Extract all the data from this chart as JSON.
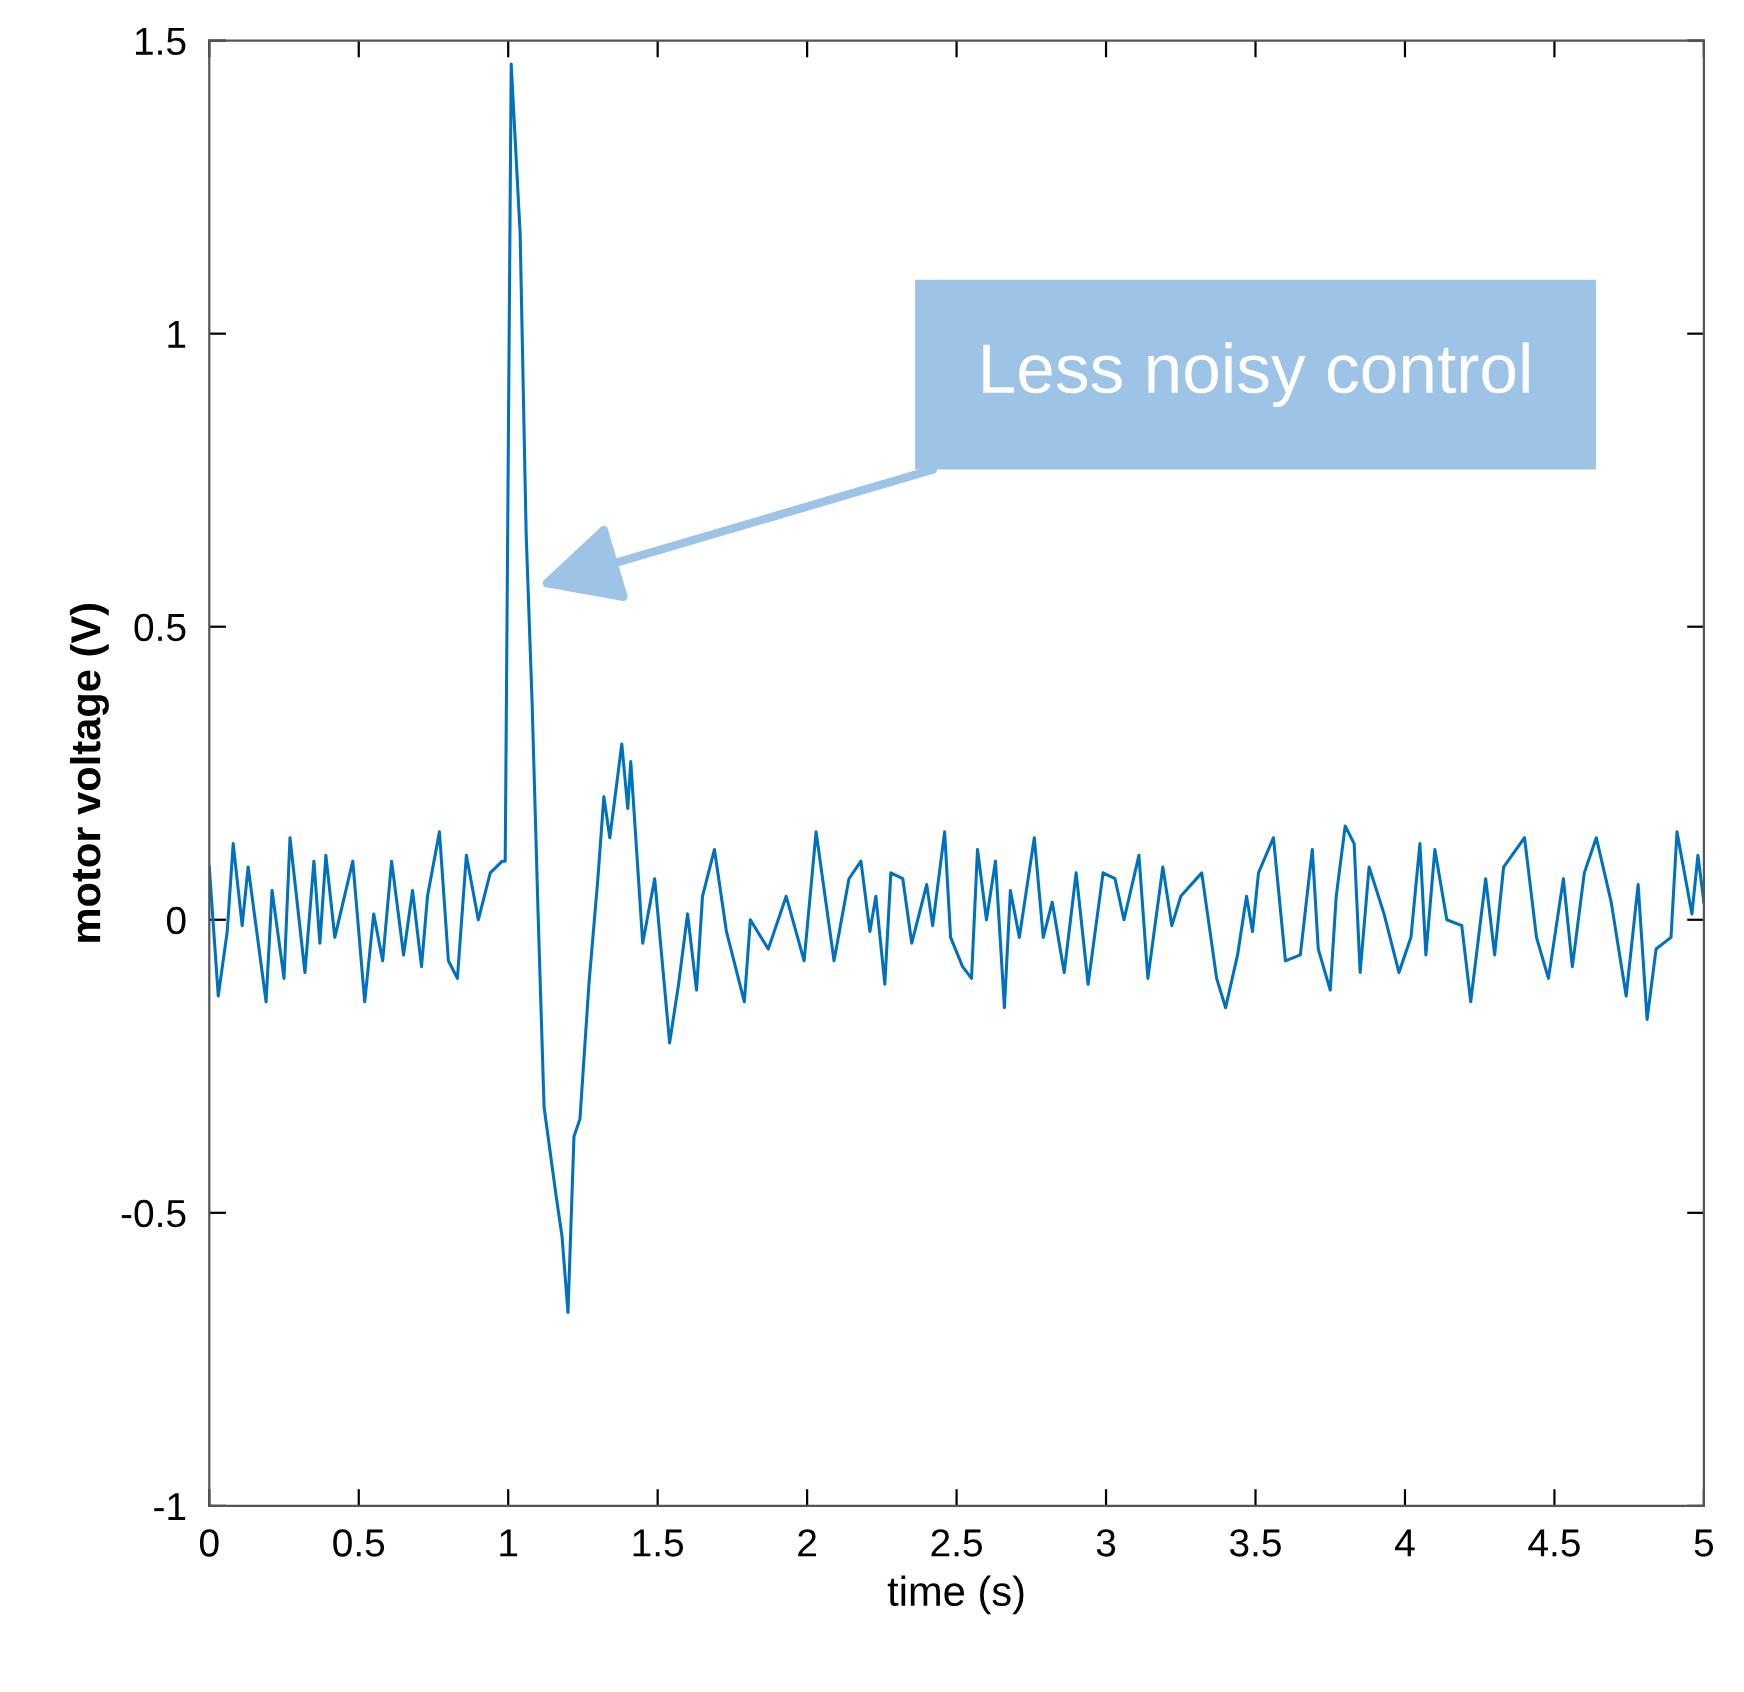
{
  "chart_data": {
    "type": "line",
    "xlabel": "time (s)",
    "ylabel": "motor voltage (V)",
    "xlim": [
      0,
      5
    ],
    "ylim": [
      -1,
      1.5
    ],
    "xticks": [
      0,
      0.5,
      1,
      1.5,
      2,
      2.5,
      3,
      3.5,
      4,
      4.5,
      5
    ],
    "yticks": [
      -1,
      -0.5,
      0,
      0.5,
      1,
      1.5
    ],
    "grid": false,
    "marker": "none",
    "line_style": "solid",
    "annotations": [
      {
        "text": "Less noisy control",
        "x": 1.1,
        "y": 0.57
      }
    ],
    "x": [
      0,
      0.03,
      0.06,
      0.08,
      0.11,
      0.13,
      0.19,
      0.21,
      0.25,
      0.27,
      0.32,
      0.35,
      0.37,
      0.39,
      0.42,
      0.48,
      0.52,
      0.55,
      0.58,
      0.61,
      0.65,
      0.68,
      0.71,
      0.73,
      0.77,
      0.8,
      0.83,
      0.86,
      0.9,
      0.94,
      0.98,
      0.99,
      1.01,
      1.04,
      1.06,
      1.08,
      1.1,
      1.12,
      1.16,
      1.18,
      1.2,
      1.22,
      1.24,
      1.27,
      1.3,
      1.32,
      1.34,
      1.38,
      1.4,
      1.41,
      1.45,
      1.49,
      1.54,
      1.57,
      1.6,
      1.63,
      1.65,
      1.69,
      1.73,
      1.79,
      1.81,
      1.87,
      1.93,
      1.99,
      2.03,
      2.09,
      2.14,
      2.18,
      2.21,
      2.23,
      2.26,
      2.28,
      2.32,
      2.35,
      2.4,
      2.42,
      2.46,
      2.48,
      2.52,
      2.55,
      2.57,
      2.6,
      2.63,
      2.66,
      2.68,
      2.71,
      2.76,
      2.79,
      2.82,
      2.86,
      2.9,
      2.94,
      2.99,
      3.03,
      3.06,
      3.11,
      3.14,
      3.19,
      3.22,
      3.25,
      3.32,
      3.37,
      3.4,
      3.44,
      3.47,
      3.49,
      3.51,
      3.56,
      3.6,
      3.65,
      3.69,
      3.71,
      3.75,
      3.77,
      3.8,
      3.83,
      3.85,
      3.88,
      3.93,
      3.98,
      4.02,
      4.05,
      4.07,
      4.1,
      4.14,
      4.19,
      4.22,
      4.27,
      4.3,
      4.33,
      4.4,
      4.44,
      4.48,
      4.53,
      4.56,
      4.6,
      4.64,
      4.69,
      4.74,
      4.78,
      4.81,
      4.84,
      4.89,
      4.91,
      4.96,
      4.98,
      5.0
    ],
    "series": [
      {
        "color": "#0072bd",
        "values": [
          0.09,
          -0.13,
          -0.02,
          0.13,
          -0.01,
          0.09,
          -0.14,
          0.05,
          -0.1,
          0.14,
          -0.09,
          0.1,
          -0.04,
          0.11,
          -0.03,
          0.1,
          -0.14,
          0.01,
          -0.07,
          0.1,
          -0.06,
          0.05,
          -0.08,
          0.04,
          0.15,
          -0.07,
          -0.1,
          0.11,
          0.0,
          0.08,
          0.1,
          0.1,
          1.46,
          1.17,
          0.66,
          0.37,
          0.01,
          -0.32,
          -0.47,
          -0.54,
          -0.67,
          -0.37,
          -0.34,
          -0.11,
          0.07,
          0.21,
          0.14,
          0.3,
          0.19,
          0.27,
          -0.04,
          0.07,
          -0.21,
          -0.11,
          0.01,
          -0.12,
          0.04,
          0.12,
          -0.02,
          -0.14,
          0.0,
          -0.05,
          0.04,
          -0.07,
          0.15,
          -0.07,
          0.07,
          0.1,
          -0.02,
          0.04,
          -0.11,
          0.08,
          0.07,
          -0.04,
          0.06,
          -0.01,
          0.15,
          -0.03,
          -0.08,
          -0.1,
          0.12,
          0.0,
          0.1,
          -0.15,
          0.05,
          -0.03,
          0.14,
          -0.03,
          0.03,
          -0.09,
          0.08,
          -0.11,
          0.08,
          0.07,
          0.0,
          0.11,
          -0.1,
          0.09,
          -0.01,
          0.04,
          0.08,
          -0.1,
          -0.15,
          -0.06,
          0.04,
          -0.02,
          0.08,
          0.14,
          -0.07,
          -0.06,
          0.12,
          -0.05,
          -0.12,
          0.04,
          0.16,
          0.13,
          -0.09,
          0.09,
          0.01,
          -0.09,
          -0.03,
          0.13,
          -0.06,
          0.12,
          0.0,
          -0.01,
          -0.14,
          0.07,
          -0.06,
          0.09,
          0.14,
          -0.03,
          -0.1,
          0.07,
          -0.08,
          0.08,
          0.14,
          0.03,
          -0.13,
          0.06,
          -0.17,
          -0.05,
          -0.03,
          0.15,
          0.01,
          0.11,
          0.03
        ]
      }
    ]
  }
}
